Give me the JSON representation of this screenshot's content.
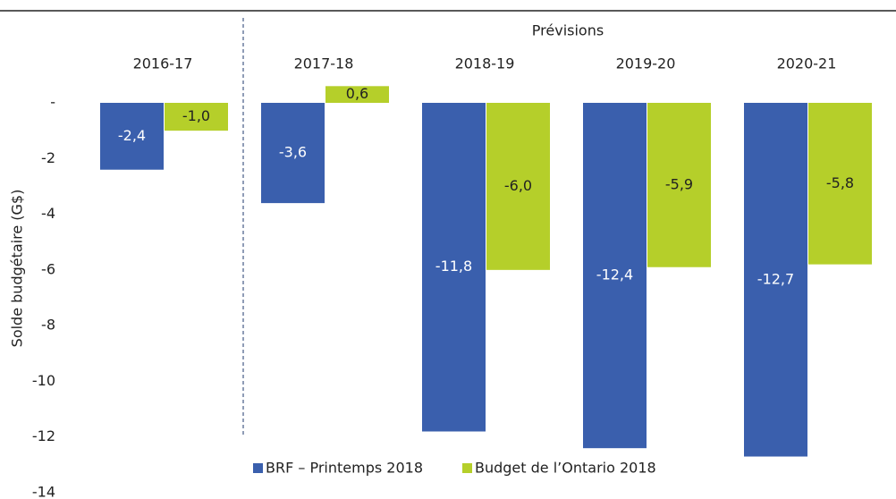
{
  "chart_data": {
    "type": "bar",
    "annotation": "Prévisions",
    "y_label": "Solde budgétaire (G$)",
    "categories": [
      "2016-17",
      "2017-18",
      "2018-19",
      "2019-20",
      "2020-21"
    ],
    "series": [
      {
        "name": "BRF – Printemps 2018",
        "color": "#3a5fad",
        "values": [
          -2.4,
          -3.6,
          -11.8,
          -12.4,
          -12.7
        ],
        "value_labels": [
          "-2,4",
          "-3,6",
          "-11,8",
          "-12,4",
          "-12,7"
        ]
      },
      {
        "name": "Budget de l’Ontario 2018",
        "color": "#b5cf2a",
        "values": [
          -1.0,
          0.6,
          -6.0,
          -5.9,
          -5.8
        ],
        "value_labels": [
          "-1,0",
          "0,6",
          "-6,0",
          "-5,9",
          "-5,8"
        ]
      }
    ],
    "ylim": [
      -14,
      0
    ],
    "yticks": [
      {
        "value": 0,
        "label": "-"
      },
      -2,
      -4,
      -6,
      -8,
      -10,
      -12,
      -14
    ],
    "legend": "bottom"
  }
}
